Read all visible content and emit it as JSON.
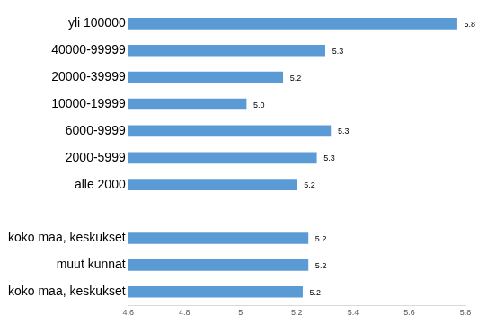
{
  "chart_data": {
    "type": "bar",
    "orientation": "horizontal",
    "categories": [
      "yli 100000",
      "40000-99999",
      "20000-39999",
      "10000-19999",
      "6000-9999",
      "2000-5999",
      "alle 2000",
      null,
      "koko maa, keskukset",
      "muut kunnat",
      "koko maa, keskukset"
    ],
    "values": [
      5.77,
      5.3,
      5.15,
      5.02,
      5.32,
      5.27,
      5.2,
      null,
      5.24,
      5.24,
      5.22
    ],
    "value_labels": [
      "5.8",
      "5.3",
      "5.2",
      "5.0",
      "5.3",
      "5.3",
      "5.2",
      null,
      "5.2",
      "5.2",
      "5.2"
    ],
    "color": "#5b9bd5",
    "xlim": [
      4.6,
      5.8
    ],
    "xticks": [
      4.6,
      4.8,
      5,
      5.2,
      5.4,
      5.6,
      5.8
    ],
    "grid": false,
    "data_labels": true
  }
}
